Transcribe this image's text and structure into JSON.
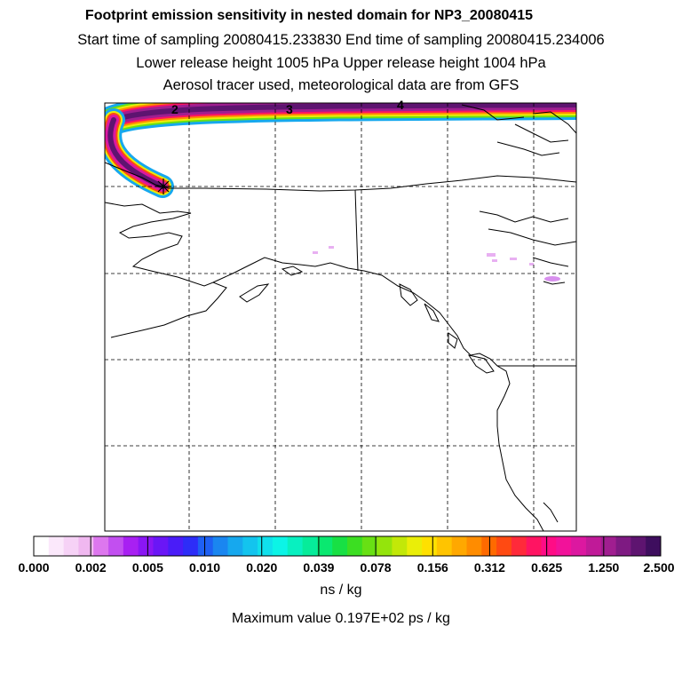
{
  "titles": {
    "main": "Footprint emission sensitivity in nested domain for NP3_20080415",
    "sampling": "Start time of sampling 20080415.233830     End time of sampling 20080415.234006",
    "release": "Lower release height 1005 hPa       Upper release height 1004 hPa",
    "tracer": "Aerosol tracer used, meteorological data are from GFS"
  },
  "map": {
    "grid_labels": [
      "2",
      "3",
      "4"
    ],
    "release_marker": "star-icon"
  },
  "colorbar": {
    "unit": "ns / kg",
    "ticks": [
      "0.000",
      "0.002",
      "0.005",
      "0.010",
      "0.020",
      "0.039",
      "0.078",
      "0.156",
      "0.312",
      "0.625",
      "1.250",
      "2.500"
    ],
    "colors": [
      "#ffffff",
      "#fbe8fb",
      "#f6d2f6",
      "#f0b8f0",
      "#dd77ee",
      "#c24ff0",
      "#a820f2",
      "#8a16f4",
      "#6a16f6",
      "#4a1cf8",
      "#2d2df8",
      "#1e60f4",
      "#1a86f0",
      "#16a8ee",
      "#13c4ee",
      "#10e0ec",
      "#0cf4e6",
      "#08f0c0",
      "#06ec9a",
      "#0ae870",
      "#18e044",
      "#3cde22",
      "#68e014",
      "#94e40c",
      "#c2e808",
      "#eaee08",
      "#ffe000",
      "#ffc400",
      "#ffa800",
      "#ff8c00",
      "#ff6a00",
      "#ff4a12",
      "#ff2a3a",
      "#ff1462",
      "#ff0c86",
      "#f2129a",
      "#dc18a0",
      "#c01a98",
      "#a01e90",
      "#7e1a82",
      "#5e1470",
      "#3e0e5e"
    ],
    "maximum": "Maximum value  0.197E+02 ps / kg"
  }
}
